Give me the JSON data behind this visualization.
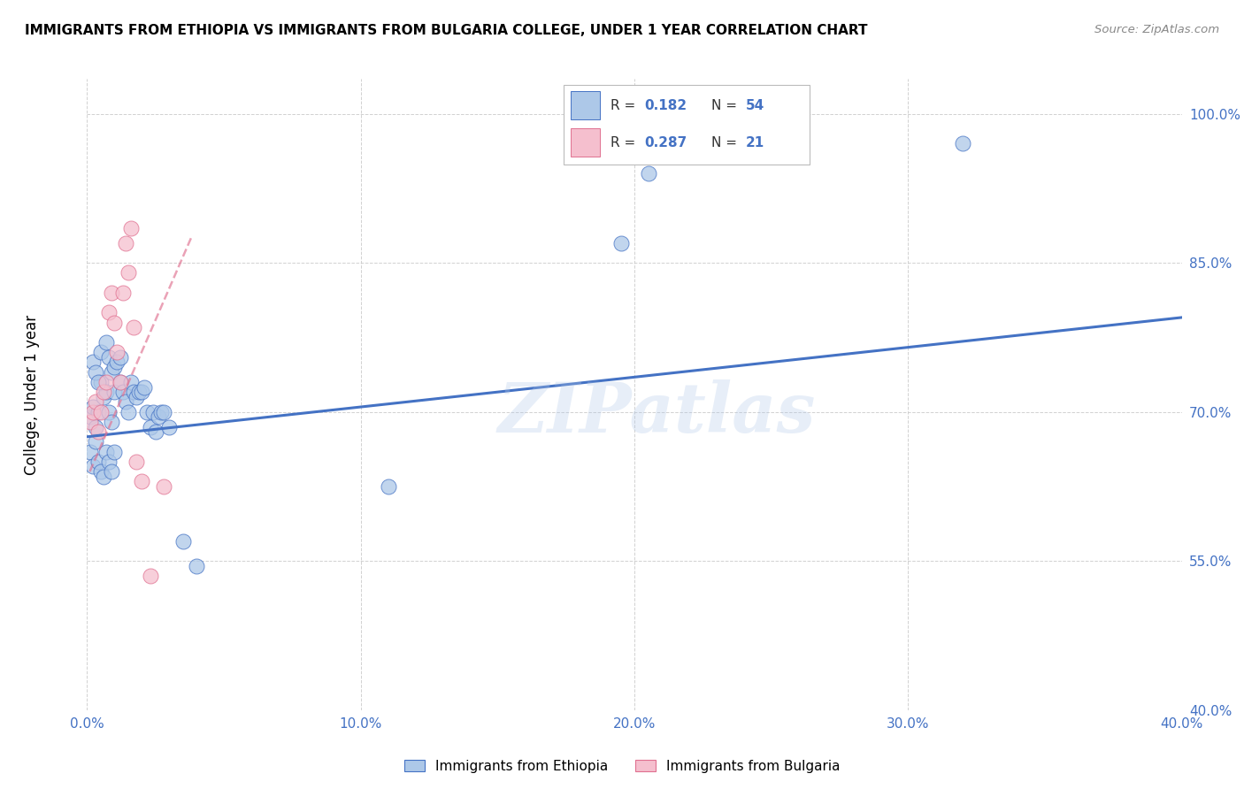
{
  "title": "IMMIGRANTS FROM ETHIOPIA VS IMMIGRANTS FROM BULGARIA COLLEGE, UNDER 1 YEAR CORRELATION CHART",
  "source": "Source: ZipAtlas.com",
  "ylabel": "College, Under 1 year",
  "xlim": [
    0.0,
    0.4
  ],
  "ylim": [
    0.4,
    1.035
  ],
  "xtick_values": [
    0.0,
    0.1,
    0.2,
    0.3,
    0.4
  ],
  "ytick_values": [
    0.55,
    0.7,
    0.85,
    1.0
  ],
  "ytick_extra": [
    0.4
  ],
  "legend_label1": "Immigrants from Ethiopia",
  "legend_label2": "Immigrants from Bulgaria",
  "R1": "0.182",
  "N1": "54",
  "R2": "0.287",
  "N2": "21",
  "color1": "#adc8e8",
  "color2": "#f5bfce",
  "trendline1_color": "#4472c4",
  "trendline2_color": "#e07090",
  "scatter1_x": [
    0.001,
    0.002,
    0.003,
    0.004,
    0.005,
    0.006,
    0.007,
    0.008,
    0.009,
    0.01,
    0.001,
    0.002,
    0.003,
    0.004,
    0.005,
    0.006,
    0.007,
    0.008,
    0.009,
    0.01,
    0.002,
    0.003,
    0.004,
    0.005,
    0.007,
    0.008,
    0.009,
    0.01,
    0.011,
    0.012,
    0.012,
    0.013,
    0.014,
    0.015,
    0.016,
    0.017,
    0.018,
    0.019,
    0.02,
    0.021,
    0.022,
    0.023,
    0.024,
    0.025,
    0.026,
    0.027,
    0.028,
    0.03,
    0.035,
    0.04,
    0.11,
    0.195,
    0.205,
    0.32
  ],
  "scatter1_y": [
    0.695,
    0.705,
    0.685,
    0.7,
    0.73,
    0.715,
    0.72,
    0.7,
    0.69,
    0.72,
    0.66,
    0.645,
    0.67,
    0.65,
    0.64,
    0.635,
    0.66,
    0.65,
    0.64,
    0.66,
    0.75,
    0.74,
    0.73,
    0.76,
    0.77,
    0.755,
    0.74,
    0.745,
    0.75,
    0.755,
    0.73,
    0.72,
    0.71,
    0.7,
    0.73,
    0.72,
    0.715,
    0.72,
    0.72,
    0.725,
    0.7,
    0.685,
    0.7,
    0.68,
    0.695,
    0.7,
    0.7,
    0.685,
    0.57,
    0.545,
    0.625,
    0.87,
    0.94,
    0.97
  ],
  "scatter2_x": [
    0.001,
    0.002,
    0.003,
    0.004,
    0.005,
    0.006,
    0.007,
    0.008,
    0.009,
    0.01,
    0.011,
    0.012,
    0.013,
    0.014,
    0.015,
    0.016,
    0.017,
    0.018,
    0.02,
    0.023,
    0.028
  ],
  "scatter2_y": [
    0.69,
    0.7,
    0.71,
    0.68,
    0.7,
    0.72,
    0.73,
    0.8,
    0.82,
    0.79,
    0.76,
    0.73,
    0.82,
    0.87,
    0.84,
    0.885,
    0.785,
    0.65,
    0.63,
    0.535,
    0.625
  ],
  "trendline1_x0": 0.0,
  "trendline1_x1": 0.4,
  "trendline1_y0": 0.675,
  "trendline1_y1": 0.795,
  "trendline2_x0": 0.001,
  "trendline2_x1": 0.038,
  "trendline2_y0": 0.64,
  "trendline2_y1": 0.875,
  "watermark": "ZIPatlas",
  "background_color": "#ffffff",
  "grid_color": "#cccccc"
}
